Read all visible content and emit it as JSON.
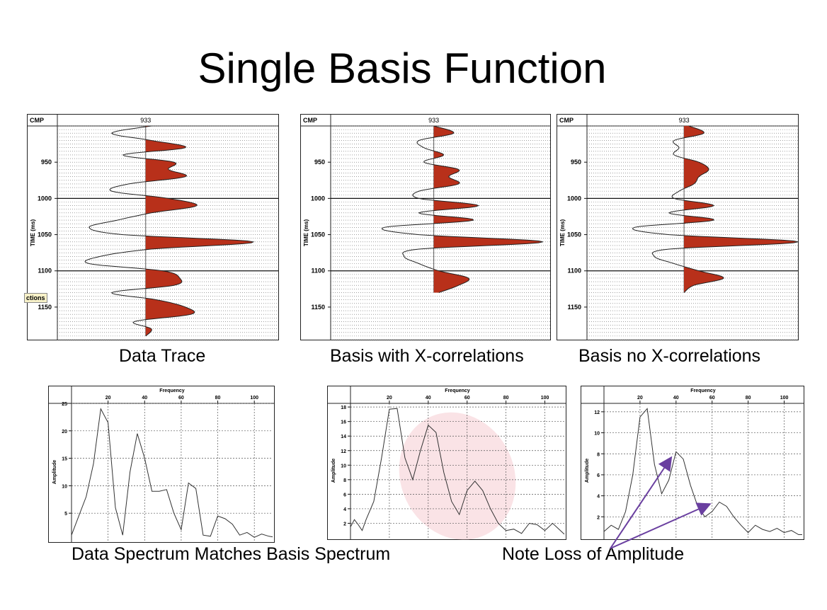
{
  "slide": {
    "title": "Single Basis Function",
    "caption_data_trace": "Data Trace",
    "caption_basis_xcorr": "Basis with X-correlations",
    "caption_basis_noxcorr": "Basis no X-correlations",
    "caption_spectrum": "Data Spectrum Matches Basis Spectrum",
    "caption_note": "Note Loss of Amplitude",
    "tooltip_text": "ctions",
    "colors": {
      "wiggle_fill": "#b8301a",
      "grid": "#555555",
      "highlight": "#f4c2c8",
      "arrow": "#6a3fa0"
    }
  },
  "chart_data": [
    {
      "type": "line",
      "subtype": "seismic-wiggle",
      "header_label": "CMP",
      "trace_label": "933",
      "ylabel": "TIME (ms)",
      "ylim": [
        900,
        1195
      ],
      "yticks": [
        950,
        1000,
        1050,
        1100,
        1150
      ],
      "time": [
        900,
        910,
        920,
        930,
        940,
        950,
        960,
        970,
        980,
        990,
        1000,
        1010,
        1020,
        1030,
        1040,
        1050,
        1060,
        1070,
        1080,
        1090,
        1100,
        1110,
        1120,
        1130,
        1140,
        1150,
        1160,
        1170,
        1180,
        1190
      ],
      "amplitude": [
        0.1,
        -0.6,
        0.1,
        0.7,
        -0.4,
        0.5,
        0.4,
        0.7,
        -0.3,
        -0.6,
        0.4,
        0.9,
        0.1,
        -0.5,
        -1.0,
        -0.4,
        1.9,
        0.1,
        -0.8,
        -1.0,
        0.3,
        0.6,
        0.5,
        -0.6,
        0.2,
        0.7,
        0.8,
        -0.2,
        0.1,
        0.0
      ]
    },
    {
      "type": "line",
      "subtype": "seismic-wiggle",
      "header_label": "CMP",
      "trace_label": "933",
      "ylabel": "TIME (ms)",
      "ylim": [
        900,
        1195
      ],
      "yticks": [
        950,
        1000,
        1050,
        1100,
        1150
      ],
      "time": [
        900,
        910,
        920,
        930,
        940,
        950,
        960,
        970,
        980,
        990,
        1000,
        1010,
        1020,
        1030,
        1040,
        1050,
        1060,
        1070,
        1080,
        1090,
        1100,
        1110,
        1120,
        1130
      ],
      "amplitude": [
        0.0,
        0.4,
        -0.3,
        -0.2,
        0.2,
        -0.2,
        0.5,
        0.3,
        0.5,
        -0.3,
        -0.3,
        0.9,
        -0.3,
        0.8,
        -1.0,
        -0.3,
        2.2,
        -0.3,
        -0.6,
        -0.3,
        0.1,
        0.7,
        0.5,
        0.1
      ]
    },
    {
      "type": "line",
      "subtype": "seismic-wiggle",
      "header_label": "CMP",
      "trace_label": "933",
      "ylabel": "TIME (ms)",
      "ylim": [
        900,
        1195
      ],
      "yticks": [
        950,
        1000,
        1050,
        1100,
        1150
      ],
      "time": [
        900,
        910,
        920,
        930,
        940,
        950,
        960,
        970,
        980,
        990,
        1000,
        1010,
        1020,
        1030,
        1040,
        1050,
        1060,
        1070,
        1080,
        1090,
        1100,
        1110,
        1120,
        1130
      ],
      "amplitude": [
        0.1,
        0.4,
        -0.2,
        -0.1,
        -0.2,
        0.3,
        0.5,
        0.3,
        0.2,
        -0.1,
        -0.2,
        0.6,
        -0.3,
        0.6,
        -1.0,
        -0.3,
        2.3,
        -0.3,
        -0.6,
        -0.2,
        0.3,
        0.8,
        0.2,
        0.0
      ]
    },
    {
      "type": "line",
      "xlabel": "Frequency",
      "ylabel": "Amplitude",
      "xlim": [
        0,
        110
      ],
      "ylim": [
        0,
        25
      ],
      "xticks": [
        20,
        40,
        60,
        80,
        100
      ],
      "yticks": [
        5,
        10,
        15,
        20,
        25
      ],
      "x": [
        0,
        4,
        8,
        12,
        16,
        20,
        24,
        28,
        32,
        36,
        40,
        44,
        48,
        52,
        56,
        60,
        64,
        68,
        72,
        76,
        80,
        84,
        88,
        92,
        96,
        100,
        104,
        108,
        110
      ],
      "y": [
        1,
        4.5,
        8,
        14,
        24,
        21.5,
        6,
        1,
        12.5,
        19.5,
        15,
        9,
        9,
        9.3,
        5,
        2,
        10.5,
        9.5,
        1,
        0.8,
        4.5,
        4,
        3,
        1,
        1.5,
        0.6,
        1.2,
        0.8,
        0.7
      ]
    },
    {
      "type": "line",
      "xlabel": "Frequency",
      "ylabel": "Amplitude",
      "xlim": [
        0,
        110
      ],
      "ylim": [
        0,
        18.5
      ],
      "xticks": [
        20,
        40,
        60,
        80,
        100
      ],
      "yticks": [
        2,
        4,
        6,
        8,
        10,
        12,
        14,
        16,
        18
      ],
      "x": [
        0,
        2,
        4,
        6,
        8,
        12,
        16,
        20,
        24,
        28,
        32,
        36,
        40,
        44,
        48,
        52,
        56,
        60,
        64,
        68,
        72,
        76,
        80,
        84,
        88,
        92,
        96,
        100,
        104,
        108,
        110
      ],
      "y": [
        1.5,
        2.5,
        1.8,
        1,
        2.5,
        5,
        11,
        17.7,
        17.8,
        11,
        8,
        12,
        15.5,
        14.5,
        9,
        5,
        3.2,
        6.5,
        7.8,
        6.5,
        4,
        2,
        1,
        1.2,
        0.6,
        2,
        1.8,
        1,
        2,
        1,
        0.5
      ]
    },
    {
      "type": "line",
      "xlabel": "Frequency",
      "ylabel": "Amplitude",
      "xlim": [
        0,
        110
      ],
      "ylim": [
        0,
        12.8
      ],
      "xticks": [
        20,
        40,
        60,
        80,
        100
      ],
      "yticks": [
        2,
        4,
        6,
        8,
        10,
        12
      ],
      "x": [
        0,
        4,
        8,
        12,
        16,
        20,
        24,
        28,
        32,
        36,
        40,
        44,
        48,
        52,
        56,
        60,
        64,
        68,
        72,
        76,
        80,
        84,
        88,
        92,
        96,
        100,
        104,
        108,
        110
      ],
      "y": [
        0.6,
        1.2,
        0.8,
        2.5,
        6,
        11.5,
        12.3,
        7,
        4.2,
        5.5,
        8.2,
        7.5,
        5,
        3,
        2,
        2.5,
        3.4,
        3,
        2,
        1.2,
        0.5,
        1.2,
        0.8,
        0.6,
        0.9,
        0.5,
        0.7,
        0.3,
        0.3
      ]
    }
  ]
}
